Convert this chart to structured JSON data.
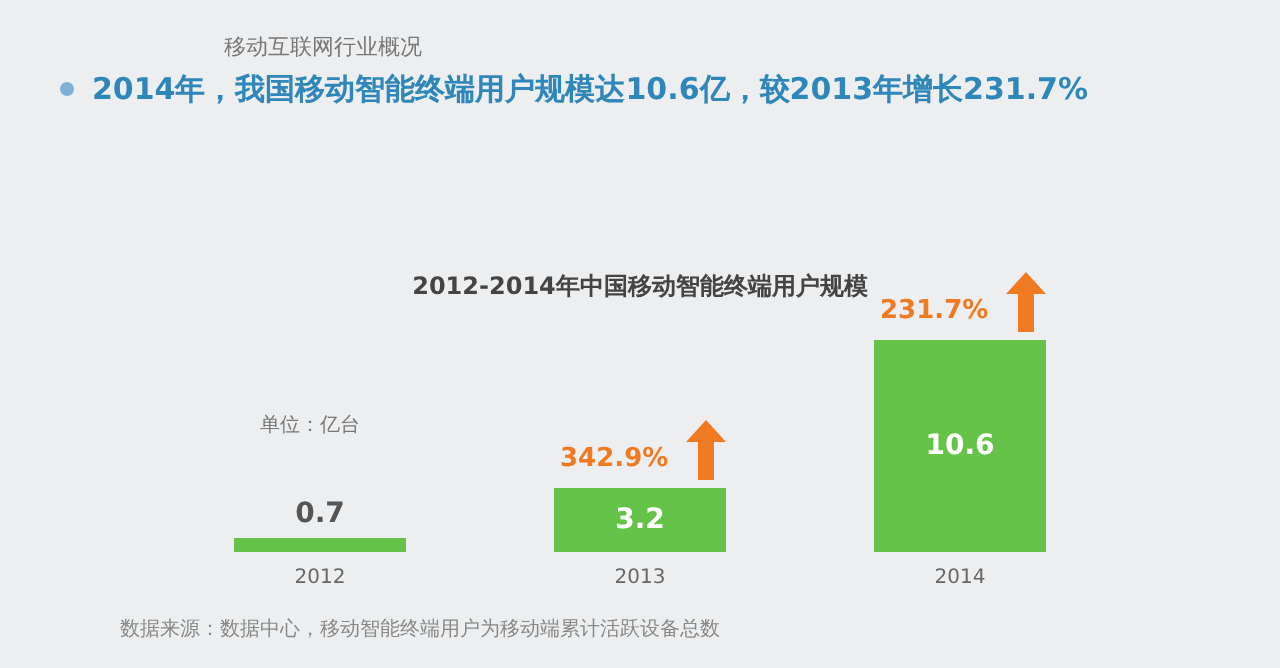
{
  "chart_data": {
    "type": "bar",
    "title": "2012-2014年中国移动智能终端用户规模",
    "subtitle": "2014年，我国移动智能终端用户规模达10.6亿，较2013年增长231.7%",
    "ylabel": "单位：亿台",
    "categories": [
      "2012",
      "2013",
      "2014"
    ],
    "values": [
      0.7,
      3.2,
      10.6
    ],
    "color": "#66c34a",
    "data_labels": true,
    "annotations": [
      "移动互联网行业概况",
      {
        "text": "342.9%",
        "x": "2013",
        "y": 3.2
      },
      {
        "text": "231.7%",
        "x": "2014",
        "y": 10.6
      },
      "数据来源：数据中心，移动智能终端用户为移动端累计活跃设备总数"
    ]
  }
}
